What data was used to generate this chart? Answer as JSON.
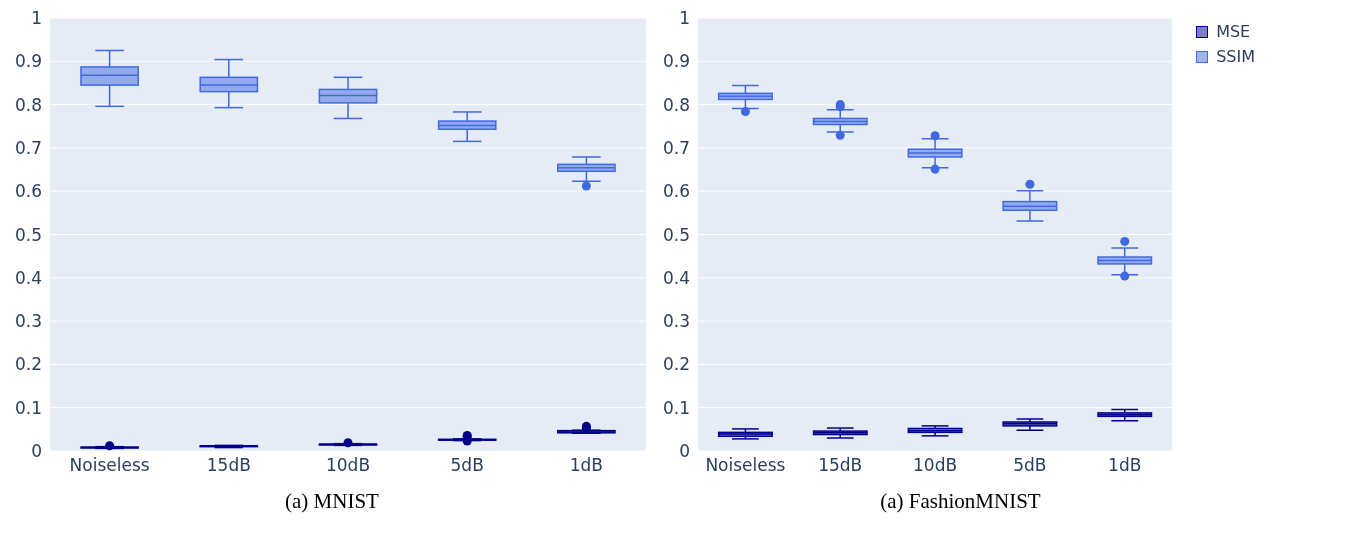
{
  "chart_data": [
    {
      "type": "box",
      "title": "(a) MNIST",
      "categories": [
        "Noiseless",
        "15dB",
        "10dB",
        "5dB",
        "1dB"
      ],
      "ylim": [
        0,
        1
      ],
      "yticks": [
        0,
        0.1,
        0.2,
        0.3,
        0.4,
        0.5,
        0.6,
        0.7,
        0.8,
        0.9,
        1
      ],
      "grid": "y",
      "series": [
        {
          "color": "#00008b",
          "boxes": [
            {
              "low": 0.006,
              "q1": 0.007,
              "median": 0.008,
              "q3": 0.009,
              "high": 0.01,
              "outliers": [
                0.012
              ]
            },
            {
              "low": 0.008,
              "q1": 0.01,
              "median": 0.011,
              "q3": 0.012,
              "high": 0.013
            },
            {
              "low": 0.013,
              "q1": 0.014,
              "median": 0.015,
              "q3": 0.016,
              "high": 0.017,
              "outliers": [
                0.019
              ]
            },
            {
              "low": 0.024,
              "q1": 0.025,
              "median": 0.026,
              "q3": 0.027,
              "high": 0.028,
              "outliers": [
                0.023,
                0.033,
                0.036
              ]
            },
            {
              "low": 0.041,
              "q1": 0.042,
              "median": 0.044,
              "q3": 0.047,
              "high": 0.048,
              "outliers": [
                0.053,
                0.057
              ]
            }
          ]
        },
        {
          "color": "#4169e1",
          "boxes": [
            {
              "low": 0.796,
              "q1": 0.845,
              "median": 0.868,
              "q3": 0.887,
              "high": 0.925
            },
            {
              "low": 0.793,
              "q1": 0.83,
              "median": 0.845,
              "q3": 0.863,
              "high": 0.904
            },
            {
              "low": 0.768,
              "q1": 0.804,
              "median": 0.821,
              "q3": 0.835,
              "high": 0.863
            },
            {
              "low": 0.715,
              "q1": 0.743,
              "median": 0.752,
              "q3": 0.762,
              "high": 0.783
            },
            {
              "low": 0.623,
              "q1": 0.646,
              "median": 0.654,
              "q3": 0.662,
              "high": 0.679,
              "outliers": [
                0.612
              ]
            }
          ]
        }
      ]
    },
    {
      "type": "box",
      "title": "(a) FashionMNIST",
      "categories": [
        "Noiseless",
        "15dB",
        "10dB",
        "5dB",
        "1dB"
      ],
      "ylim": [
        0,
        1
      ],
      "yticks": [
        0,
        0.1,
        0.2,
        0.3,
        0.4,
        0.5,
        0.6,
        0.7,
        0.8,
        0.9,
        1
      ],
      "grid": "y",
      "legend": "top right",
      "series": [
        {
          "name": "MSE",
          "color": "#00008b",
          "boxes": [
            {
              "low": 0.028,
              "q1": 0.034,
              "median": 0.039,
              "q3": 0.043,
              "high": 0.051
            },
            {
              "low": 0.03,
              "q1": 0.038,
              "median": 0.042,
              "q3": 0.046,
              "high": 0.053
            },
            {
              "low": 0.035,
              "q1": 0.043,
              "median": 0.047,
              "q3": 0.052,
              "high": 0.058
            },
            {
              "low": 0.048,
              "q1": 0.058,
              "median": 0.063,
              "q3": 0.067,
              "high": 0.074
            },
            {
              "low": 0.07,
              "q1": 0.08,
              "median": 0.084,
              "q3": 0.088,
              "high": 0.096
            }
          ]
        },
        {
          "name": "SSIM",
          "color": "#4169e1",
          "boxes": [
            {
              "low": 0.791,
              "q1": 0.812,
              "median": 0.819,
              "q3": 0.826,
              "high": 0.844,
              "outliers": [
                0.784
              ]
            },
            {
              "low": 0.737,
              "q1": 0.754,
              "median": 0.761,
              "q3": 0.768,
              "high": 0.788,
              "outliers": [
                0.729,
                0.795,
                0.8
              ]
            },
            {
              "low": 0.654,
              "q1": 0.679,
              "median": 0.688,
              "q3": 0.697,
              "high": 0.721,
              "outliers": [
                0.651,
                0.728
              ]
            },
            {
              "low": 0.531,
              "q1": 0.556,
              "median": 0.565,
              "q3": 0.576,
              "high": 0.601,
              "outliers": [
                0.616
              ]
            },
            {
              "low": 0.407,
              "q1": 0.432,
              "median": 0.44,
              "q3": 0.448,
              "high": 0.469,
              "outliers": [
                0.404,
                0.484
              ]
            }
          ]
        }
      ]
    }
  ]
}
